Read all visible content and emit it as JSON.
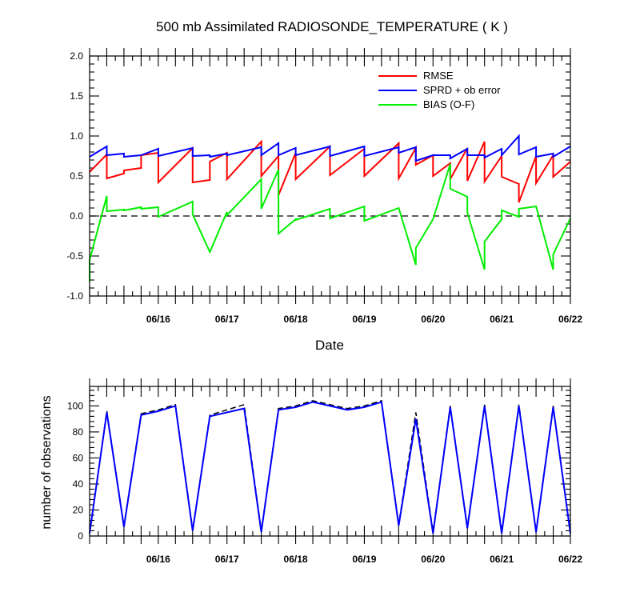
{
  "title": "500 mb Assimilated RADIOSONDE_TEMPERATURE ( K )",
  "colors": {
    "rmse": "#ff0000",
    "sprd": "#0000ff",
    "bias": "#00ee00",
    "reference": "#000000"
  },
  "chart_data": [
    {
      "type": "line",
      "title": "500 mb Assimilated RADIOSONDE_TEMPERATURE ( K )",
      "xlabel": "Date",
      "ylabel": "",
      "x_tick_labels": [
        "06/16",
        "06/17",
        "06/18",
        "06/19",
        "06/20",
        "06/21",
        "06/22"
      ],
      "x_tick_values": [
        1,
        2,
        3,
        4,
        5,
        6,
        7
      ],
      "xlim": [
        0.0,
        7.0
      ],
      "ylim": [
        -1.0,
        2.0
      ],
      "y_ticks": [
        "-1.0",
        "-0.5",
        "0.0",
        "0.5",
        "1.0",
        "1.5",
        "2.0"
      ],
      "y_tick_values": [
        -1.0,
        -0.5,
        0.0,
        0.5,
        1.0,
        1.5,
        2.0
      ],
      "legend_position": "top-right",
      "reference_line": {
        "y": 0.0,
        "style": "dashed"
      },
      "series": [
        {
          "name": "RMSE",
          "color": "#ff0000",
          "points": [
            [
              0.0,
              0.55
            ],
            [
              0.25,
              0.77
            ],
            [
              0.25,
              0.47
            ],
            [
              0.5,
              0.53
            ],
            [
              0.5,
              0.57
            ],
            [
              0.75,
              0.6
            ],
            [
              0.75,
              0.76
            ],
            [
              1.0,
              0.79
            ],
            [
              1.0,
              0.42
            ],
            [
              1.5,
              0.85
            ],
            [
              1.5,
              0.42
            ],
            [
              1.75,
              0.45
            ],
            [
              1.75,
              0.68
            ],
            [
              2.0,
              0.79
            ],
            [
              2.0,
              0.46
            ],
            [
              2.5,
              0.93
            ],
            [
              2.5,
              0.5
            ],
            [
              2.75,
              0.75
            ],
            [
              2.75,
              0.26
            ],
            [
              3.0,
              0.79
            ],
            [
              3.0,
              0.46
            ],
            [
              3.5,
              0.87
            ],
            [
              3.5,
              0.51
            ],
            [
              4.0,
              0.84
            ],
            [
              4.0,
              0.5
            ],
            [
              4.5,
              0.91
            ],
            [
              4.5,
              0.47
            ],
            [
              4.75,
              0.85
            ],
            [
              4.75,
              0.64
            ],
            [
              5.0,
              0.76
            ],
            [
              5.0,
              0.5
            ],
            [
              5.25,
              0.66
            ],
            [
              5.25,
              0.46
            ],
            [
              5.5,
              0.85
            ],
            [
              5.5,
              0.44
            ],
            [
              5.75,
              0.93
            ],
            [
              5.75,
              0.43
            ],
            [
              6.0,
              0.75
            ],
            [
              6.0,
              0.49
            ],
            [
              6.25,
              0.4
            ],
            [
              6.25,
              0.17
            ],
            [
              6.5,
              0.75
            ],
            [
              6.5,
              0.41
            ],
            [
              6.75,
              0.76
            ],
            [
              6.75,
              0.49
            ],
            [
              7.0,
              0.68
            ]
          ]
        },
        {
          "name": "SPRD + ob error",
          "color": "#0000ff",
          "points": [
            [
              0.0,
              0.74
            ],
            [
              0.25,
              0.87
            ],
            [
              0.25,
              0.76
            ],
            [
              0.5,
              0.78
            ],
            [
              0.5,
              0.74
            ],
            [
              0.75,
              0.76
            ],
            [
              0.75,
              0.76
            ],
            [
              1.0,
              0.84
            ],
            [
              1.0,
              0.75
            ],
            [
              1.5,
              0.85
            ],
            [
              1.5,
              0.75
            ],
            [
              1.75,
              0.76
            ],
            [
              1.75,
              0.74
            ],
            [
              2.0,
              0.78
            ],
            [
              2.0,
              0.76
            ],
            [
              2.5,
              0.86
            ],
            [
              2.5,
              0.76
            ],
            [
              2.75,
              0.91
            ],
            [
              2.75,
              0.76
            ],
            [
              3.0,
              0.85
            ],
            [
              3.0,
              0.76
            ],
            [
              3.5,
              0.87
            ],
            [
              3.5,
              0.75
            ],
            [
              4.0,
              0.87
            ],
            [
              4.0,
              0.75
            ],
            [
              4.5,
              0.86
            ],
            [
              4.5,
              0.79
            ],
            [
              4.75,
              0.86
            ],
            [
              4.75,
              0.69
            ],
            [
              5.0,
              0.76
            ],
            [
              5.0,
              0.76
            ],
            [
              5.25,
              0.76
            ],
            [
              5.25,
              0.72
            ],
            [
              5.5,
              0.84
            ],
            [
              5.5,
              0.76
            ],
            [
              5.75,
              0.76
            ],
            [
              5.75,
              0.73
            ],
            [
              6.0,
              0.84
            ],
            [
              6.0,
              0.76
            ],
            [
              6.25,
              1.0
            ],
            [
              6.25,
              0.77
            ],
            [
              6.5,
              0.86
            ],
            [
              6.5,
              0.74
            ],
            [
              6.75,
              0.78
            ],
            [
              6.75,
              0.74
            ],
            [
              7.0,
              0.87
            ]
          ]
        },
        {
          "name": "BIAS (O-F)",
          "color": "#00ee00",
          "points": [
            [
              0.0,
              -0.82
            ],
            [
              0.0,
              -0.55
            ],
            [
              0.25,
              0.25
            ],
            [
              0.25,
              0.06
            ],
            [
              0.5,
              0.08
            ],
            [
              0.5,
              0.07
            ],
            [
              0.75,
              0.11
            ],
            [
              0.75,
              0.09
            ],
            [
              1.0,
              0.11
            ],
            [
              1.0,
              -0.01
            ],
            [
              1.5,
              0.18
            ],
            [
              1.5,
              0.02
            ],
            [
              1.75,
              -0.45
            ],
            [
              2.0,
              0.05
            ],
            [
              2.0,
              0.01
            ],
            [
              2.5,
              0.46
            ],
            [
              2.5,
              0.09
            ],
            [
              2.75,
              0.58
            ],
            [
              2.75,
              -0.22
            ],
            [
              3.0,
              -0.04
            ],
            [
              3.0,
              -0.05
            ],
            [
              3.5,
              0.09
            ],
            [
              3.5,
              -0.03
            ],
            [
              4.0,
              0.12
            ],
            [
              4.0,
              -0.06
            ],
            [
              4.5,
              0.1
            ],
            [
              4.75,
              -0.61
            ],
            [
              4.75,
              -0.4
            ],
            [
              5.0,
              -0.04
            ],
            [
              5.25,
              0.65
            ],
            [
              5.25,
              0.34
            ],
            [
              5.5,
              0.24
            ],
            [
              5.5,
              0.04
            ],
            [
              5.75,
              -0.67
            ],
            [
              5.75,
              -0.32
            ],
            [
              6.0,
              -0.04
            ],
            [
              6.0,
              0.07
            ],
            [
              6.25,
              -0.01
            ],
            [
              6.25,
              0.09
            ],
            [
              6.5,
              0.12
            ],
            [
              6.75,
              -0.67
            ],
            [
              6.75,
              -0.48
            ],
            [
              7.0,
              -0.03
            ]
          ]
        }
      ]
    },
    {
      "type": "line",
      "title": "",
      "xlabel": "",
      "ylabel": "number of observations",
      "x_tick_labels": [
        "06/16",
        "06/17",
        "06/18",
        "06/19",
        "06/20",
        "06/21",
        "06/22"
      ],
      "x_tick_values": [
        1,
        2,
        3,
        4,
        5,
        6,
        7
      ],
      "xlim": [
        0.0,
        7.0
      ],
      "ylim": [
        0,
        115
      ],
      "y_ticks": [
        "0",
        "20",
        "40",
        "60",
        "80",
        "100"
      ],
      "y_tick_values": [
        0,
        20,
        40,
        60,
        80,
        100
      ],
      "series": [
        {
          "style": "dashed",
          "color": "#000000",
          "points": [
            [
              0.0,
              2
            ],
            [
              0.25,
              96
            ],
            [
              0.5,
              8
            ],
            [
              0.75,
              94
            ],
            [
              1.0,
              97
            ],
            [
              1.25,
              101
            ],
            [
              1.5,
              5
            ],
            [
              1.75,
              93
            ],
            [
              2.0,
              97
            ],
            [
              2.25,
              101
            ],
            [
              2.5,
              4
            ],
            [
              2.75,
              98
            ],
            [
              3.0,
              100
            ],
            [
              3.25,
              104
            ],
            [
              3.5,
              101
            ],
            [
              3.75,
              98
            ],
            [
              4.0,
              100
            ],
            [
              4.25,
              104
            ],
            [
              4.5,
              9
            ],
            [
              4.75,
              95
            ],
            [
              5.0,
              3
            ],
            [
              5.25,
              100
            ],
            [
              5.5,
              7
            ],
            [
              5.75,
              101
            ],
            [
              6.0,
              3
            ],
            [
              6.25,
              101
            ],
            [
              6.5,
              4
            ],
            [
              6.75,
              100
            ],
            [
              7.0,
              2
            ]
          ]
        },
        {
          "style": "solid",
          "color": "#0000ff",
          "points": [
            [
              0.0,
              2
            ],
            [
              0.25,
              95
            ],
            [
              0.5,
              7
            ],
            [
              0.75,
              93
            ],
            [
              1.0,
              96
            ],
            [
              1.25,
              100
            ],
            [
              1.5,
              4
            ],
            [
              1.75,
              92
            ],
            [
              2.0,
              95
            ],
            [
              2.25,
              98
            ],
            [
              2.5,
              3
            ],
            [
              2.75,
              97
            ],
            [
              3.0,
              99
            ],
            [
              3.25,
              103
            ],
            [
              3.5,
              100
            ],
            [
              3.75,
              97
            ],
            [
              4.0,
              99
            ],
            [
              4.25,
              103
            ],
            [
              4.5,
              8
            ],
            [
              4.75,
              90
            ],
            [
              5.0,
              2
            ],
            [
              5.25,
              99
            ],
            [
              5.5,
              6
            ],
            [
              5.75,
              100
            ],
            [
              6.0,
              2
            ],
            [
              6.25,
              100
            ],
            [
              6.5,
              3
            ],
            [
              6.75,
              99
            ],
            [
              7.0,
              2
            ]
          ]
        }
      ]
    }
  ]
}
